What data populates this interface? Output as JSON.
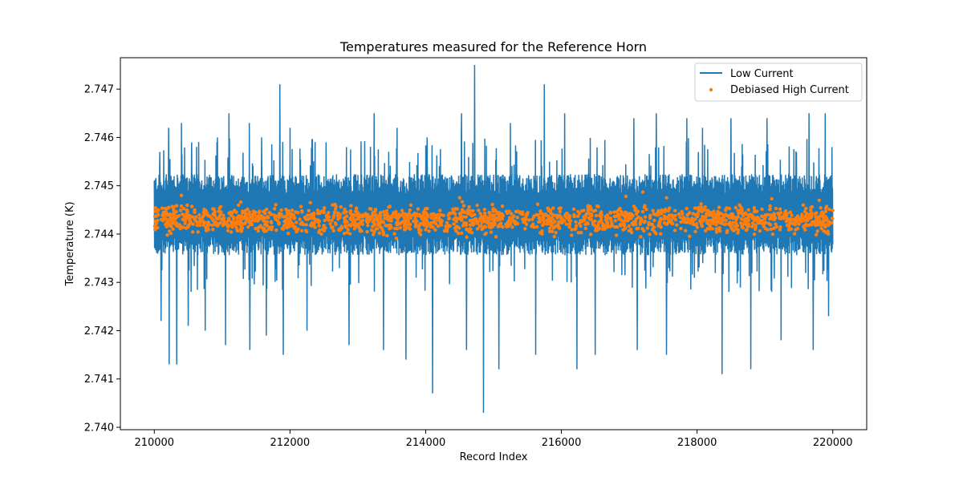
{
  "chart_data": {
    "type": "line",
    "title": "Temperatures measured for the Reference Horn",
    "xlabel": "Record Index",
    "ylabel": "Temperature (K)",
    "xlim": [
      209500,
      220500
    ],
    "ylim": [
      2.73995,
      2.74765
    ],
    "x_ticks": [
      210000,
      212000,
      214000,
      216000,
      218000,
      220000
    ],
    "x_tick_labels": [
      "210000",
      "212000",
      "214000",
      "216000",
      "218000",
      "220000"
    ],
    "y_ticks": [
      2.74,
      2.741,
      2.742,
      2.743,
      2.744,
      2.745,
      2.746,
      2.747
    ],
    "y_tick_labels": [
      "2.740",
      "2.741",
      "2.742",
      "2.743",
      "2.744",
      "2.745",
      "2.746",
      "2.747"
    ],
    "grid": false,
    "legend_position": "top-right",
    "series": [
      {
        "name": "Low Current",
        "kind": "line",
        "color": "#1f77b4",
        "x_range": [
          210000,
          220000
        ],
        "band_core": [
          2.7436,
          2.7452
        ],
        "spikes_high": [
          {
            "x": 210080,
            "y": 2.7457
          },
          {
            "x": 210210,
            "y": 2.7462
          },
          {
            "x": 210400,
            "y": 2.7463
          },
          {
            "x": 210550,
            "y": 2.7459
          },
          {
            "x": 210930,
            "y": 2.746
          },
          {
            "x": 211100,
            "y": 2.7465
          },
          {
            "x": 211400,
            "y": 2.7463
          },
          {
            "x": 211580,
            "y": 2.746
          },
          {
            "x": 211850,
            "y": 2.7471
          },
          {
            "x": 212000,
            "y": 2.7462
          },
          {
            "x": 212530,
            "y": 2.7459
          },
          {
            "x": 212830,
            "y": 2.7458
          },
          {
            "x": 213240,
            "y": 2.7465
          },
          {
            "x": 213580,
            "y": 2.7462
          },
          {
            "x": 214020,
            "y": 2.746
          },
          {
            "x": 214530,
            "y": 2.7465
          },
          {
            "x": 214720,
            "y": 2.7475
          },
          {
            "x": 214850,
            "y": 2.7467
          },
          {
            "x": 215250,
            "y": 2.7463
          },
          {
            "x": 215750,
            "y": 2.7471
          },
          {
            "x": 216050,
            "y": 2.7465
          },
          {
            "x": 216500,
            "y": 2.7464
          },
          {
            "x": 217070,
            "y": 2.7464
          },
          {
            "x": 217400,
            "y": 2.7465
          },
          {
            "x": 217850,
            "y": 2.7464
          },
          {
            "x": 218080,
            "y": 2.7462
          },
          {
            "x": 218500,
            "y": 2.7464
          },
          {
            "x": 219030,
            "y": 2.7464
          },
          {
            "x": 219240,
            "y": 2.7469
          },
          {
            "x": 219650,
            "y": 2.7465
          },
          {
            "x": 219890,
            "y": 2.7465
          }
        ],
        "spikes_low": [
          {
            "x": 210100,
            "y": 2.7422
          },
          {
            "x": 210220,
            "y": 2.7413
          },
          {
            "x": 210330,
            "y": 2.7413
          },
          {
            "x": 210500,
            "y": 2.7421
          },
          {
            "x": 210750,
            "y": 2.742
          },
          {
            "x": 211050,
            "y": 2.7417
          },
          {
            "x": 211410,
            "y": 2.7416
          },
          {
            "x": 211650,
            "y": 2.7419
          },
          {
            "x": 211900,
            "y": 2.7415
          },
          {
            "x": 212250,
            "y": 2.742
          },
          {
            "x": 212870,
            "y": 2.7417
          },
          {
            "x": 213380,
            "y": 2.7416
          },
          {
            "x": 213710,
            "y": 2.7414
          },
          {
            "x": 214100,
            "y": 2.7407
          },
          {
            "x": 214600,
            "y": 2.7416
          },
          {
            "x": 214850,
            "y": 2.7403
          },
          {
            "x": 215080,
            "y": 2.7412
          },
          {
            "x": 215620,
            "y": 2.7415
          },
          {
            "x": 216230,
            "y": 2.7412
          },
          {
            "x": 216500,
            "y": 2.7415
          },
          {
            "x": 217120,
            "y": 2.7416
          },
          {
            "x": 217550,
            "y": 2.7415
          },
          {
            "x": 218370,
            "y": 2.7411
          },
          {
            "x": 218790,
            "y": 2.7412
          },
          {
            "x": 219240,
            "y": 2.7418
          },
          {
            "x": 219710,
            "y": 2.7416
          },
          {
            "x": 219940,
            "y": 2.7423
          }
        ]
      },
      {
        "name": "Debiased High Current",
        "kind": "scatter",
        "color": "#ff7f0e",
        "x_range": [
          210000,
          220000
        ],
        "band_core": [
          2.744,
          2.7446
        ],
        "outliers": [
          {
            "x": 210400,
            "y": 2.7448
          },
          {
            "x": 212300,
            "y": 2.74465
          },
          {
            "x": 214500,
            "y": 2.74475
          },
          {
            "x": 216950,
            "y": 2.74478
          },
          {
            "x": 217200,
            "y": 2.74487
          },
          {
            "x": 217550,
            "y": 2.74475
          },
          {
            "x": 219100,
            "y": 2.74473
          },
          {
            "x": 219800,
            "y": 2.7447
          }
        ]
      }
    ]
  }
}
